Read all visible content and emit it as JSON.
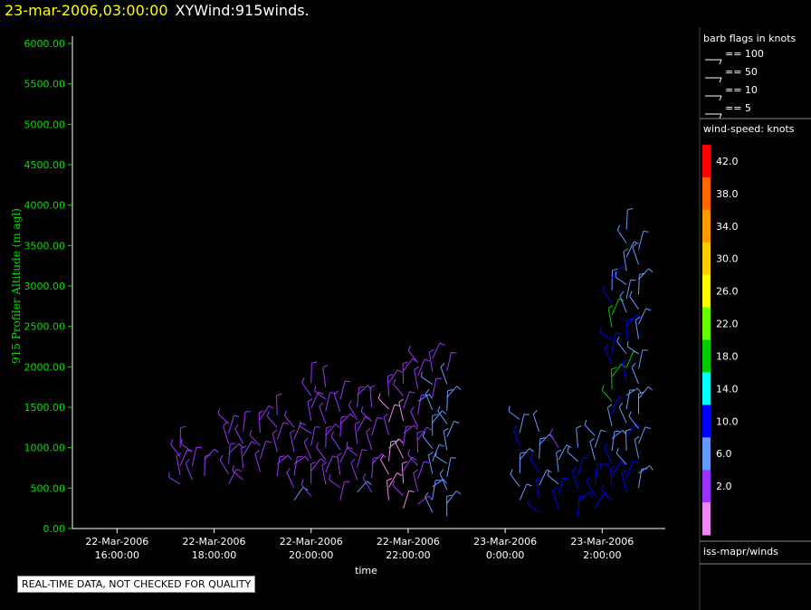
{
  "header": {
    "datetime": "23-mar-2006,03:00:00",
    "name": "XYWind:915winds."
  },
  "notice": "REAL-TIME DATA, NOT CHECKED FOR QUALITY",
  "chart_data": {
    "type": "scatter",
    "subtype": "wind-barbs",
    "ylabel": "915 Profiler Altitude (m agl)",
    "xlabel": "time",
    "ylim": [
      0,
      6000
    ],
    "y_ticks": [
      "0.00",
      "500.00",
      "1000.00",
      "1500.00",
      "2000.00",
      "2500.00",
      "3000.00",
      "3500.00",
      "4000.00",
      "4500.00",
      "5000.00",
      "5500.00",
      "6000.00"
    ],
    "x_ticks": [
      {
        "t": 16,
        "date": "22-Mar-2006",
        "time": "16:00:00"
      },
      {
        "t": 18,
        "date": "22-Mar-2006",
        "time": "18:00:00"
      },
      {
        "t": 20,
        "date": "22-Mar-2006",
        "time": "20:00:00"
      },
      {
        "t": 22,
        "date": "22-Mar-2006",
        "time": "22:00:00"
      },
      {
        "t": 24,
        "date": "23-Mar-2006",
        "time": "0:00:00"
      },
      {
        "t": 26,
        "date": "23-Mar-2006",
        "time": "2:00:00"
      }
    ],
    "xlim": [
      15.08,
      27.3
    ],
    "profiles": [
      {
        "t": 17.3,
        "bottom": 550,
        "top": 1000,
        "speeds": [
          6,
          6,
          6,
          7,
          6
        ]
      },
      {
        "t": 17.55,
        "bottom": 600,
        "top": 950,
        "speeds": [
          6,
          7,
          6
        ]
      },
      {
        "t": 17.8,
        "bottom": 650,
        "top": 850,
        "speeds": [
          6,
          6
        ]
      },
      {
        "t": 18.3,
        "bottom": 550,
        "top": 1300,
        "speeds": [
          6,
          6,
          6,
          7,
          6,
          6,
          7
        ]
      },
      {
        "t": 18.6,
        "bottom": 600,
        "top": 1200,
        "speeds": [
          6,
          6,
          6,
          6,
          6
        ]
      },
      {
        "t": 18.95,
        "bottom": 700,
        "top": 1350,
        "speeds": [
          6,
          7,
          6,
          6,
          6
        ]
      },
      {
        "t": 19.3,
        "bottom": 650,
        "top": 1400,
        "speeds": [
          7,
          6,
          6,
          6,
          6,
          6
        ]
      },
      {
        "t": 19.65,
        "bottom": 350,
        "top": 1250,
        "speeds": [
          8,
          6,
          6,
          6,
          6,
          7,
          6
        ]
      },
      {
        "t": 20.0,
        "bottom": 400,
        "top": 1800,
        "speeds": [
          6,
          6,
          6,
          6,
          7,
          6,
          6,
          6,
          7,
          6
        ]
      },
      {
        "t": 20.3,
        "bottom": 550,
        "top": 1750,
        "speeds": [
          6,
          6,
          6,
          6,
          6,
          6,
          6,
          7,
          6
        ]
      },
      {
        "t": 20.6,
        "bottom": 350,
        "top": 1600,
        "speeds": [
          6,
          6,
          6,
          7,
          6,
          6,
          6,
          6,
          7
        ]
      },
      {
        "t": 20.95,
        "bottom": 450,
        "top": 1650,
        "speeds": [
          8,
          6,
          6,
          6,
          6,
          6,
          6,
          7,
          6
        ]
      },
      {
        "t": 21.25,
        "bottom": 450,
        "top": 1500,
        "speeds": [
          6,
          6,
          6,
          6,
          6,
          6,
          7
        ]
      },
      {
        "t": 21.6,
        "bottom": 350,
        "top": 1800,
        "speeds": [
          2,
          2,
          2,
          2,
          2,
          6,
          2,
          2,
          7,
          6
        ]
      },
      {
        "t": 21.9,
        "bottom": 250,
        "top": 1950,
        "speeds": [
          2,
          6,
          2,
          6,
          2,
          6,
          6,
          2,
          6,
          6,
          6,
          6
        ]
      },
      {
        "t": 22.2,
        "bottom": 300,
        "top": 2050,
        "speeds": [
          6,
          6,
          6,
          6,
          6,
          7,
          6,
          6,
          10,
          6,
          6,
          7
        ]
      },
      {
        "t": 22.5,
        "bottom": 200,
        "top": 2100,
        "speeds": [
          10,
          10,
          10,
          10,
          8,
          10,
          10,
          8,
          8,
          7,
          8,
          6,
          7
        ]
      },
      {
        "t": 22.8,
        "bottom": 150,
        "top": 1950,
        "speeds": [
          10,
          10,
          10,
          10,
          10,
          10,
          10,
          8,
          8,
          8,
          8,
          7
        ]
      },
      {
        "t": 24.3,
        "bottom": 350,
        "top": 1350,
        "speeds": [
          10,
          10,
          10,
          10,
          12,
          10,
          10
        ]
      },
      {
        "t": 24.7,
        "bottom": 200,
        "top": 1200,
        "speeds": [
          12,
          12,
          10,
          12,
          10,
          10,
          10
        ]
      },
      {
        "t": 25.1,
        "bottom": 250,
        "top": 1000,
        "speeds": [
          12,
          12,
          10,
          10,
          8,
          6
        ]
      },
      {
        "t": 25.5,
        "bottom": 150,
        "top": 1000,
        "speeds": [
          13,
          13,
          12,
          12,
          10,
          10
        ]
      },
      {
        "t": 25.85,
        "bottom": 250,
        "top": 1150,
        "speeds": [
          13,
          12,
          12,
          12,
          10,
          10,
          8
        ]
      },
      {
        "t": 26.2,
        "bottom": 350,
        "top": 3100,
        "speeds": [
          14,
          13,
          12,
          12,
          10,
          10,
          10,
          12,
          22,
          22,
          22,
          12,
          14,
          12,
          22,
          22,
          12,
          10,
          12
        ]
      },
      {
        "t": 26.5,
        "bottom": 450,
        "top": 3700,
        "speeds": [
          12,
          12,
          10,
          10,
          12,
          10,
          10,
          10,
          12,
          22,
          10,
          12,
          12,
          10,
          8,
          10,
          10,
          8,
          8,
          8
        ]
      },
      {
        "t": 26.75,
        "bottom": 500,
        "top": 3450,
        "speeds": [
          10,
          10,
          8,
          8,
          10,
          10,
          8,
          10,
          8,
          8,
          10,
          8,
          8,
          8,
          8,
          8,
          8
        ]
      }
    ],
    "colorbar": {
      "title": "wind-speed: knots",
      "labels": [
        "42.0",
        "38.0",
        "34.0",
        "30.0",
        "26.0",
        "22.0",
        "18.0",
        "14.0",
        "10.0",
        "6.0",
        "2.0"
      ],
      "colors": [
        "#ff0000",
        "#ff6600",
        "#ff9900",
        "#ffcc00",
        "#ffff00",
        "#66ff00",
        "#00cc00",
        "#00ffff",
        "#0000ff",
        "#6699ff",
        "#9933ff",
        "#ee88ee"
      ]
    },
    "barb_legend": {
      "title": "barb flags in knots",
      "entries": [
        "== 100",
        "== 50",
        "== 10",
        "== 5"
      ]
    },
    "source": "iss-mapr/winds"
  }
}
